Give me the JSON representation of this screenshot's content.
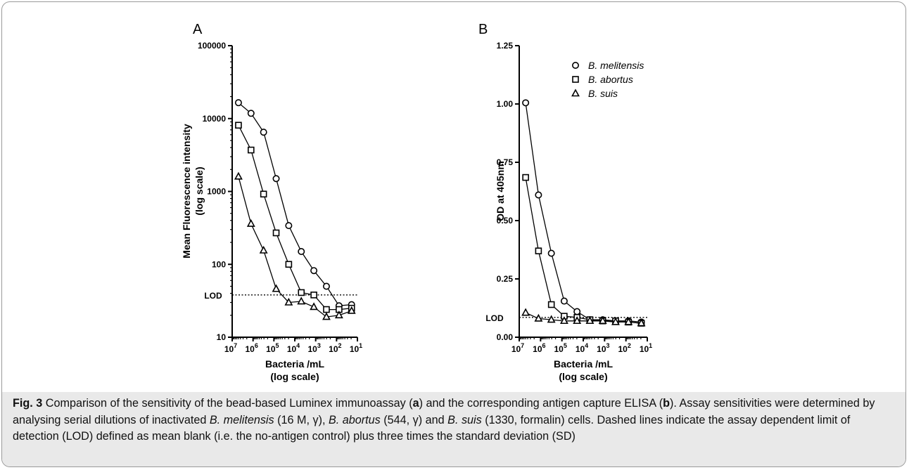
{
  "chart_data": [
    {
      "type": "line",
      "panel_label": "A",
      "xlabel": "Bacteria /mL",
      "xlabel_sub": "(log scale)",
      "ylabel": "Mean Fluorescence intensity",
      "ylabel_sub": "(log scale)",
      "x_scale": "log-reversed",
      "y_scale": "log",
      "xlim": [
        10000000,
        10
      ],
      "ylim": [
        10,
        100000
      ],
      "x_ticks": [
        {
          "exp": "7",
          "value": 10000000
        },
        {
          "exp": "6",
          "value": 1000000
        },
        {
          "exp": "5",
          "value": 100000
        },
        {
          "exp": "4",
          "value": 10000
        },
        {
          "exp": "3",
          "value": 1000
        },
        {
          "exp": "2",
          "value": 100
        },
        {
          "exp": "1",
          "value": 10
        }
      ],
      "y_ticks": [
        {
          "label": "10",
          "value": 10
        },
        {
          "label": "100",
          "value": 100
        },
        {
          "label": "1000",
          "value": 1000
        },
        {
          "label": "10000",
          "value": 10000
        },
        {
          "label": "100000",
          "value": 100000
        }
      ],
      "lod": {
        "label": "LOD",
        "value": 38
      },
      "series": [
        {
          "name": "B. melitensis",
          "marker": "circle",
          "x": [
            5000000,
            1250000,
            312500,
            78125,
            19531,
            4883,
            1221,
            305,
            76,
            19
          ],
          "y": [
            16500,
            11800,
            6500,
            1500,
            340,
            150,
            82,
            50,
            27,
            28
          ]
        },
        {
          "name": "B. abortus",
          "marker": "square",
          "x": [
            5000000,
            1250000,
            312500,
            78125,
            19531,
            4883,
            1221,
            305,
            76,
            19
          ],
          "y": [
            8100,
            3700,
            920,
            270,
            100,
            41,
            38,
            24,
            24,
            25
          ]
        },
        {
          "name": "B. suis",
          "marker": "triangle",
          "x": [
            5000000,
            1250000,
            312500,
            78125,
            19531,
            4883,
            1221,
            305,
            76,
            19
          ],
          "y": [
            1600,
            360,
            155,
            46,
            30,
            31,
            26,
            19,
            20,
            23
          ]
        }
      ]
    },
    {
      "type": "line",
      "panel_label": "B",
      "xlabel": "Bacteria /mL",
      "xlabel_sub": "(log scale)",
      "ylabel": "OD at 405nm",
      "x_scale": "log-reversed",
      "y_scale": "linear",
      "xlim": [
        10000000,
        10
      ],
      "ylim": [
        0,
        1.25
      ],
      "x_ticks": [
        {
          "exp": "7",
          "value": 10000000
        },
        {
          "exp": "6",
          "value": 1000000
        },
        {
          "exp": "5",
          "value": 100000
        },
        {
          "exp": "4",
          "value": 10000
        },
        {
          "exp": "3",
          "value": 1000
        },
        {
          "exp": "2",
          "value": 100
        },
        {
          "exp": "1",
          "value": 10
        }
      ],
      "y_ticks": [
        {
          "label": "0.00",
          "value": 0
        },
        {
          "label": "0.25",
          "value": 0.25
        },
        {
          "label": "0.50",
          "value": 0.5
        },
        {
          "label": "0.75",
          "value": 0.75
        },
        {
          "label": "1.00",
          "value": 1.0
        },
        {
          "label": "1.25",
          "value": 1.25
        }
      ],
      "lod": {
        "label": "LOD",
        "value": 0.085
      },
      "legend": {
        "position": "top-right"
      },
      "series": [
        {
          "name": "B. melitensis",
          "marker": "circle",
          "x": [
            5000000,
            1250000,
            312500,
            78125,
            19531,
            4883,
            1221,
            305,
            76,
            19
          ],
          "y": [
            1.005,
            0.61,
            0.36,
            0.155,
            0.11,
            0.075,
            0.075,
            0.07,
            0.07,
            0.065
          ]
        },
        {
          "name": "B. abortus",
          "marker": "square",
          "x": [
            5000000,
            1250000,
            312500,
            78125,
            19531,
            4883,
            1221,
            305,
            76,
            19
          ],
          "y": [
            0.685,
            0.37,
            0.14,
            0.09,
            0.085,
            0.075,
            0.07,
            0.07,
            0.065,
            0.06
          ]
        },
        {
          "name": "B. suis",
          "marker": "triangle",
          "x": [
            5000000,
            1250000,
            312500,
            78125,
            19531,
            4883,
            1221,
            305,
            76,
            19
          ],
          "y": [
            0.105,
            0.08,
            0.075,
            0.07,
            0.07,
            0.07,
            0.07,
            0.065,
            0.065,
            0.06
          ]
        }
      ]
    }
  ],
  "caption": {
    "label": "Fig. 3",
    "segments": [
      {
        "t": " Comparison of the sensitivity of the bead-based Luminex immunoassay (",
        "s": "n"
      },
      {
        "t": "a",
        "s": "b"
      },
      {
        "t": ") and the corresponding antigen capture ELISA (",
        "s": "n"
      },
      {
        "t": "b",
        "s": "b"
      },
      {
        "t": "). Assay sensitivities were determined by analysing serial dilutions of inactivated ",
        "s": "n"
      },
      {
        "t": "B. melitensis",
        "s": "i"
      },
      {
        "t": " (16 M, γ), ",
        "s": "n"
      },
      {
        "t": "B. abortus",
        "s": "i"
      },
      {
        "t": " (544, γ) and ",
        "s": "n"
      },
      {
        "t": "B. suis",
        "s": "i"
      },
      {
        "t": " (1330, formalin) cells. Dashed lines indicate the assay dependent limit of detection (LOD) defined as mean blank (i.e. the no-antigen control) plus three times the standard deviation (SD)",
        "s": "n"
      }
    ]
  }
}
